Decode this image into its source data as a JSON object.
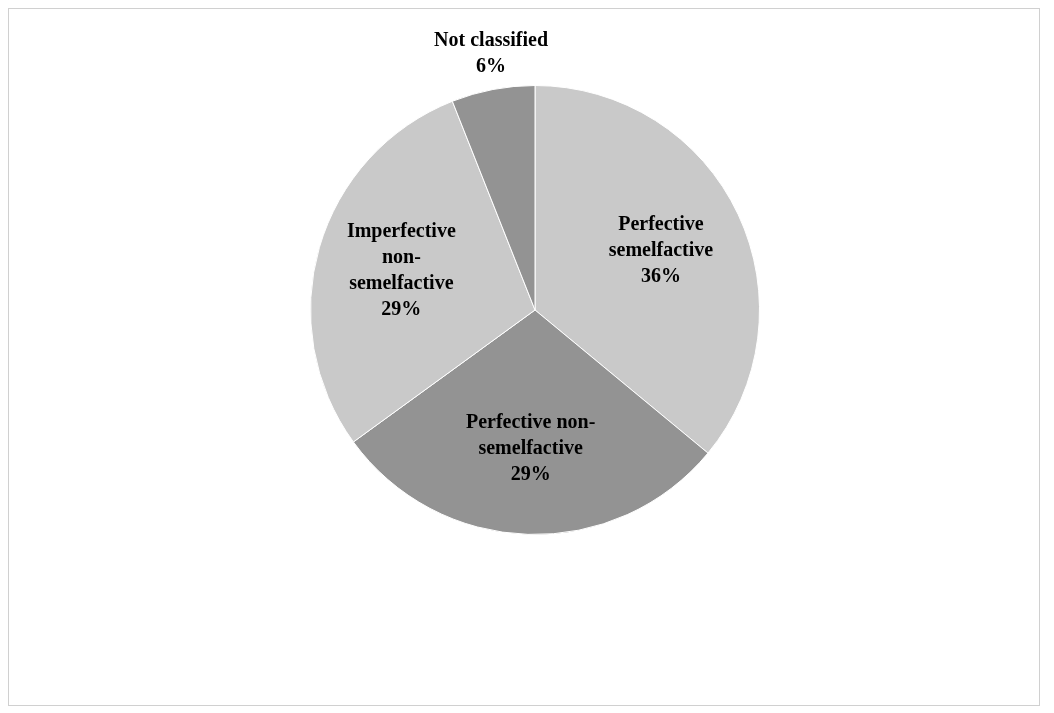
{
  "chart_data": {
    "type": "pie",
    "categories": [
      "Perfective semelfactive",
      "Perfective non-semelfactive",
      "Imperfective non-semelfactive",
      "Not classified"
    ],
    "values": [
      36,
      29,
      29,
      6
    ],
    "colors": [
      "#c9c9c9",
      "#939393",
      "#c9c9c9",
      "#939393"
    ],
    "value_labels": [
      "36%",
      "29%",
      "29%",
      "6%"
    ],
    "legend": false
  }
}
